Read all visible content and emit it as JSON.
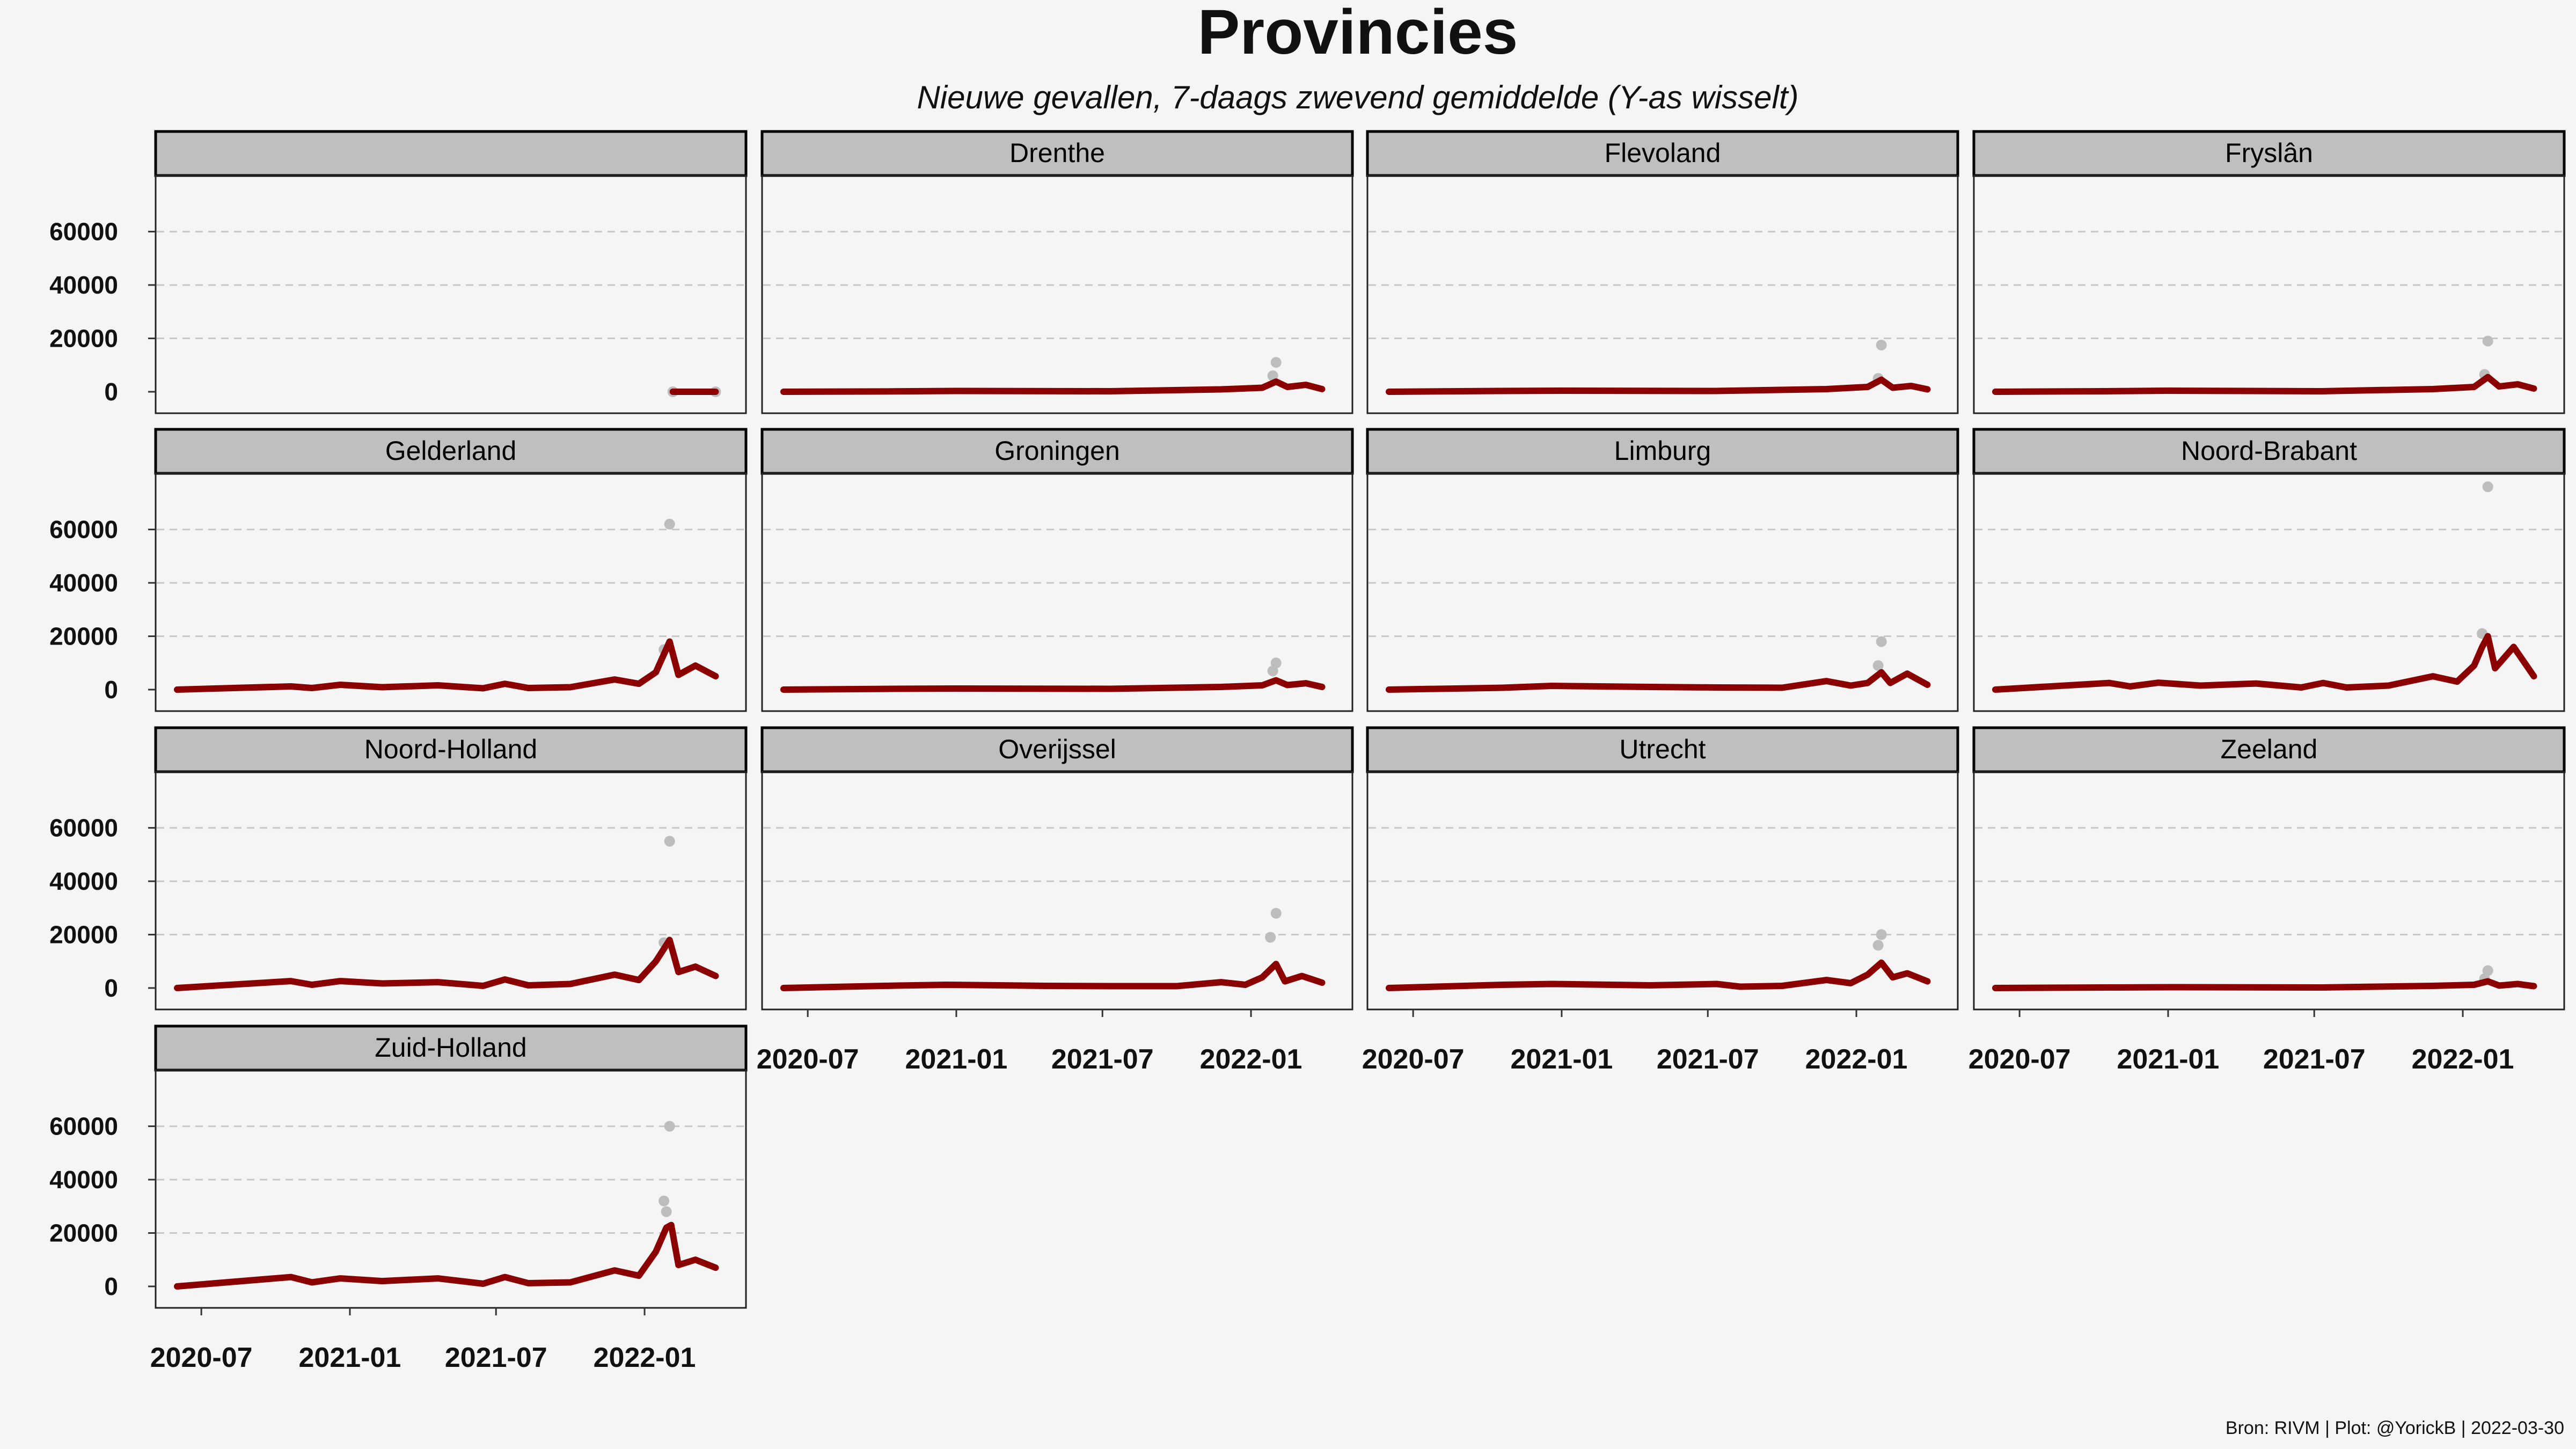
{
  "chart_data": {
    "type": "line",
    "title": "Provincies",
    "subtitle": "Nieuwe gevallen, 7-daags zwevend gemiddelde  (Y-as wisselt)",
    "caption": "Bron: RIVM | Plot: @YorickB |  2022-03-30",
    "xlabel": "",
    "ylabel": "",
    "x_ticks": [
      "2020-07",
      "2021-01",
      "2021-07",
      "2022-01"
    ],
    "y_ticks": [
      "0",
      "20000",
      "40000",
      "60000"
    ],
    "ylim": [
      0,
      75000
    ],
    "xlim": [
      "2020-06-01",
      "2022-04-10"
    ],
    "grid": "horizontal dashed",
    "colors": {
      "line": "#8b0000",
      "points": "#bdbdbd",
      "strip": "#bfbfbf"
    },
    "panels": [
      {
        "name": "",
        "series": [
          {
            "x": "2022-02-05",
            "y": 0
          },
          {
            "x": "2022-03-30",
            "y": 0
          }
        ],
        "points": [
          {
            "x": "2022-02-05",
            "y": 0
          },
          {
            "x": "2022-03-30",
            "y": 0
          }
        ]
      },
      {
        "name": "Drenthe",
        "series": [
          {
            "x": "2020-06-01",
            "y": 0
          },
          {
            "x": "2020-10-15",
            "y": 150
          },
          {
            "x": "2021-01-01",
            "y": 300
          },
          {
            "x": "2021-07-10",
            "y": 200
          },
          {
            "x": "2021-11-25",
            "y": 900
          },
          {
            "x": "2022-01-15",
            "y": 1500
          },
          {
            "x": "2022-02-01",
            "y": 3800
          },
          {
            "x": "2022-02-15",
            "y": 1800
          },
          {
            "x": "2022-03-10",
            "y": 2600
          },
          {
            "x": "2022-03-30",
            "y": 1000
          }
        ],
        "points": [
          {
            "x": "2022-02-01",
            "y": 11000
          },
          {
            "x": "2022-01-28",
            "y": 6000
          }
        ]
      },
      {
        "name": "Flevoland",
        "series": [
          {
            "x": "2020-06-01",
            "y": 0
          },
          {
            "x": "2020-10-15",
            "y": 300
          },
          {
            "x": "2021-01-01",
            "y": 400
          },
          {
            "x": "2021-07-10",
            "y": 300
          },
          {
            "x": "2021-11-25",
            "y": 1000
          },
          {
            "x": "2022-01-15",
            "y": 1800
          },
          {
            "x": "2022-02-01",
            "y": 4500
          },
          {
            "x": "2022-02-15",
            "y": 1500
          },
          {
            "x": "2022-03-10",
            "y": 2200
          },
          {
            "x": "2022-03-30",
            "y": 900
          }
        ],
        "points": [
          {
            "x": "2022-02-01",
            "y": 17500
          },
          {
            "x": "2022-01-28",
            "y": 5000
          }
        ]
      },
      {
        "name": "Fryslân",
        "series": [
          {
            "x": "2020-06-01",
            "y": 0
          },
          {
            "x": "2020-10-15",
            "y": 200
          },
          {
            "x": "2021-01-01",
            "y": 400
          },
          {
            "x": "2021-07-10",
            "y": 200
          },
          {
            "x": "2021-11-25",
            "y": 1000
          },
          {
            "x": "2022-01-15",
            "y": 1800
          },
          {
            "x": "2022-02-01",
            "y": 5500
          },
          {
            "x": "2022-02-15",
            "y": 2000
          },
          {
            "x": "2022-03-10",
            "y": 2800
          },
          {
            "x": "2022-03-30",
            "y": 1200
          }
        ],
        "points": [
          {
            "x": "2022-02-01",
            "y": 19000
          },
          {
            "x": "2022-01-28",
            "y": 6500
          }
        ]
      },
      {
        "name": "Gelderland",
        "series": [
          {
            "x": "2020-06-01",
            "y": 0
          },
          {
            "x": "2020-10-20",
            "y": 1200
          },
          {
            "x": "2020-11-15",
            "y": 600
          },
          {
            "x": "2020-12-20",
            "y": 1800
          },
          {
            "x": "2021-02-10",
            "y": 900
          },
          {
            "x": "2021-04-20",
            "y": 1600
          },
          {
            "x": "2021-06-15",
            "y": 500
          },
          {
            "x": "2021-07-12",
            "y": 2200
          },
          {
            "x": "2021-08-10",
            "y": 600
          },
          {
            "x": "2021-10-01",
            "y": 900
          },
          {
            "x": "2021-11-25",
            "y": 3800
          },
          {
            "x": "2021-12-25",
            "y": 2200
          },
          {
            "x": "2022-01-15",
            "y": 6500
          },
          {
            "x": "2022-02-01",
            "y": 18000
          },
          {
            "x": "2022-02-12",
            "y": 5500
          },
          {
            "x": "2022-03-05",
            "y": 9000
          },
          {
            "x": "2022-03-30",
            "y": 5000
          }
        ],
        "points": [
          {
            "x": "2022-02-01",
            "y": 62000
          },
          {
            "x": "2022-01-25",
            "y": 15000
          }
        ]
      },
      {
        "name": "Groningen",
        "series": [
          {
            "x": "2020-06-01",
            "y": 0
          },
          {
            "x": "2020-10-15",
            "y": 300
          },
          {
            "x": "2021-01-01",
            "y": 400
          },
          {
            "x": "2021-07-10",
            "y": 300
          },
          {
            "x": "2021-11-25",
            "y": 1000
          },
          {
            "x": "2022-01-15",
            "y": 1600
          },
          {
            "x": "2022-02-01",
            "y": 3500
          },
          {
            "x": "2022-02-15",
            "y": 1700
          },
          {
            "x": "2022-03-10",
            "y": 2400
          },
          {
            "x": "2022-03-30",
            "y": 1000
          }
        ],
        "points": [
          {
            "x": "2022-02-01",
            "y": 10000
          },
          {
            "x": "2022-01-28",
            "y": 7000
          }
        ]
      },
      {
        "name": "Limburg",
        "series": [
          {
            "x": "2020-06-01",
            "y": 0
          },
          {
            "x": "2020-10-20",
            "y": 700
          },
          {
            "x": "2020-12-20",
            "y": 1400
          },
          {
            "x": "2021-04-20",
            "y": 1000
          },
          {
            "x": "2021-07-12",
            "y": 800
          },
          {
            "x": "2021-10-01",
            "y": 700
          },
          {
            "x": "2021-11-25",
            "y": 3200
          },
          {
            "x": "2021-12-25",
            "y": 1500
          },
          {
            "x": "2022-01-15",
            "y": 2500
          },
          {
            "x": "2022-02-01",
            "y": 6500
          },
          {
            "x": "2022-02-12",
            "y": 2500
          },
          {
            "x": "2022-03-05",
            "y": 6000
          },
          {
            "x": "2022-03-30",
            "y": 1800
          }
        ],
        "points": [
          {
            "x": "2022-02-01",
            "y": 18000
          },
          {
            "x": "2022-01-28",
            "y": 9000
          }
        ]
      },
      {
        "name": "Noord-Brabant",
        "series": [
          {
            "x": "2020-06-01",
            "y": 0
          },
          {
            "x": "2020-10-20",
            "y": 2500
          },
          {
            "x": "2020-11-15",
            "y": 1200
          },
          {
            "x": "2020-12-20",
            "y": 2600
          },
          {
            "x": "2021-02-10",
            "y": 1500
          },
          {
            "x": "2021-04-20",
            "y": 2300
          },
          {
            "x": "2021-06-15",
            "y": 800
          },
          {
            "x": "2021-07-12",
            "y": 2500
          },
          {
            "x": "2021-08-10",
            "y": 800
          },
          {
            "x": "2021-10-01",
            "y": 1500
          },
          {
            "x": "2021-11-25",
            "y": 5000
          },
          {
            "x": "2021-12-25",
            "y": 3000
          },
          {
            "x": "2022-01-15",
            "y": 9000
          },
          {
            "x": "2022-01-25",
            "y": 16000
          },
          {
            "x": "2022-02-01",
            "y": 20000
          },
          {
            "x": "2022-02-10",
            "y": 8000
          },
          {
            "x": "2022-03-05",
            "y": 16000
          },
          {
            "x": "2022-03-30",
            "y": 5000
          }
        ],
        "points": [
          {
            "x": "2022-02-01",
            "y": 76000
          },
          {
            "x": "2022-01-25",
            "y": 21000
          }
        ]
      },
      {
        "name": "Noord-Holland",
        "series": [
          {
            "x": "2020-06-01",
            "y": 0
          },
          {
            "x": "2020-10-20",
            "y": 2600
          },
          {
            "x": "2020-11-15",
            "y": 1200
          },
          {
            "x": "2020-12-20",
            "y": 2600
          },
          {
            "x": "2021-02-10",
            "y": 1700
          },
          {
            "x": "2021-04-20",
            "y": 2200
          },
          {
            "x": "2021-06-15",
            "y": 800
          },
          {
            "x": "2021-07-12",
            "y": 3200
          },
          {
            "x": "2021-08-10",
            "y": 1000
          },
          {
            "x": "2021-10-01",
            "y": 1500
          },
          {
            "x": "2021-11-25",
            "y": 5000
          },
          {
            "x": "2021-12-25",
            "y": 3000
          },
          {
            "x": "2022-01-15",
            "y": 10000
          },
          {
            "x": "2022-02-01",
            "y": 18000
          },
          {
            "x": "2022-02-12",
            "y": 6000
          },
          {
            "x": "2022-03-05",
            "y": 8000
          },
          {
            "x": "2022-03-30",
            "y": 4500
          }
        ],
        "points": [
          {
            "x": "2022-02-01",
            "y": 55000
          },
          {
            "x": "2022-01-25",
            "y": 17000
          }
        ]
      },
      {
        "name": "Overijssel",
        "series": [
          {
            "x": "2020-06-01",
            "y": 0
          },
          {
            "x": "2020-10-20",
            "y": 900
          },
          {
            "x": "2020-12-20",
            "y": 1200
          },
          {
            "x": "2021-04-20",
            "y": 800
          },
          {
            "x": "2021-07-12",
            "y": 700
          },
          {
            "x": "2021-10-01",
            "y": 700
          },
          {
            "x": "2021-11-25",
            "y": 2200
          },
          {
            "x": "2021-12-25",
            "y": 1200
          },
          {
            "x": "2022-01-15",
            "y": 4000
          },
          {
            "x": "2022-02-01",
            "y": 9000
          },
          {
            "x": "2022-02-12",
            "y": 2500
          },
          {
            "x": "2022-03-05",
            "y": 4500
          },
          {
            "x": "2022-03-30",
            "y": 2000
          }
        ],
        "points": [
          {
            "x": "2022-02-01",
            "y": 28000
          },
          {
            "x": "2022-01-25",
            "y": 19000
          }
        ]
      },
      {
        "name": "Utrecht",
        "series": [
          {
            "x": "2020-06-01",
            "y": 0
          },
          {
            "x": "2020-10-20",
            "y": 1200
          },
          {
            "x": "2020-12-20",
            "y": 1500
          },
          {
            "x": "2021-04-20",
            "y": 1000
          },
          {
            "x": "2021-07-12",
            "y": 1500
          },
          {
            "x": "2021-08-10",
            "y": 500
          },
          {
            "x": "2021-10-01",
            "y": 800
          },
          {
            "x": "2021-11-25",
            "y": 3000
          },
          {
            "x": "2021-12-25",
            "y": 1800
          },
          {
            "x": "2022-01-15",
            "y": 5000
          },
          {
            "x": "2022-02-01",
            "y": 9500
          },
          {
            "x": "2022-02-15",
            "y": 4000
          },
          {
            "x": "2022-03-05",
            "y": 5500
          },
          {
            "x": "2022-03-30",
            "y": 2500
          }
        ],
        "points": [
          {
            "x": "2022-02-01",
            "y": 20000
          },
          {
            "x": "2022-01-28",
            "y": 16000
          }
        ]
      },
      {
        "name": "Zeeland",
        "series": [
          {
            "x": "2020-06-01",
            "y": 0
          },
          {
            "x": "2020-10-15",
            "y": 200
          },
          {
            "x": "2021-01-01",
            "y": 300
          },
          {
            "x": "2021-07-10",
            "y": 200
          },
          {
            "x": "2021-11-25",
            "y": 800
          },
          {
            "x": "2022-01-15",
            "y": 1200
          },
          {
            "x": "2022-02-01",
            "y": 2500
          },
          {
            "x": "2022-02-15",
            "y": 900
          },
          {
            "x": "2022-03-10",
            "y": 1500
          },
          {
            "x": "2022-03-30",
            "y": 700
          }
        ],
        "points": [
          {
            "x": "2022-02-01",
            "y": 6500
          },
          {
            "x": "2022-01-28",
            "y": 3500
          }
        ]
      },
      {
        "name": "Zuid-Holland",
        "series": [
          {
            "x": "2020-06-01",
            "y": 0
          },
          {
            "x": "2020-10-20",
            "y": 3500
          },
          {
            "x": "2020-11-15",
            "y": 1500
          },
          {
            "x": "2020-12-20",
            "y": 3000
          },
          {
            "x": "2021-02-10",
            "y": 2000
          },
          {
            "x": "2021-04-20",
            "y": 3000
          },
          {
            "x": "2021-06-15",
            "y": 1000
          },
          {
            "x": "2021-07-12",
            "y": 3500
          },
          {
            "x": "2021-08-10",
            "y": 1200
          },
          {
            "x": "2021-10-01",
            "y": 1500
          },
          {
            "x": "2021-11-25",
            "y": 6000
          },
          {
            "x": "2021-12-25",
            "y": 4000
          },
          {
            "x": "2022-01-15",
            "y": 13000
          },
          {
            "x": "2022-01-28",
            "y": 22000
          },
          {
            "x": "2022-02-03",
            "y": 23000
          },
          {
            "x": "2022-02-12",
            "y": 8000
          },
          {
            "x": "2022-03-05",
            "y": 10000
          },
          {
            "x": "2022-03-30",
            "y": 7000
          }
        ],
        "points": [
          {
            "x": "2022-02-01",
            "y": 60000
          },
          {
            "x": "2022-01-25",
            "y": 32000
          },
          {
            "x": "2022-01-28",
            "y": 28000
          }
        ]
      }
    ]
  }
}
